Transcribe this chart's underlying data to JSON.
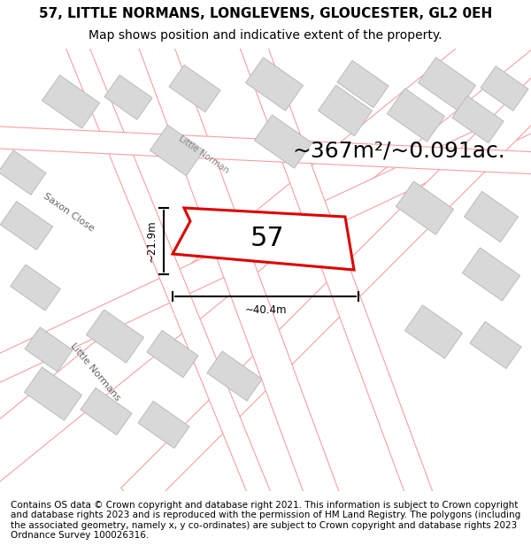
{
  "title_line1": "57, LITTLE NORMANS, LONGLEVENS, GLOUCESTER, GL2 0EH",
  "title_line2": "Map shows position and indicative extent of the property.",
  "area_text": "~367m²/~0.091ac.",
  "label_57": "57",
  "dim_width": "~40.4m",
  "dim_height": "~21.9m",
  "footer_text": "Contains OS data © Crown copyright and database right 2021. This information is subject to Crown copyright and database rights 2023 and is reproduced with the permission of HM Land Registry. The polygons (including the associated geometry, namely x, y co-ordinates) are subject to Crown copyright and database rights 2023 Ordnance Survey 100026316.",
  "bg_color": "#ffffff",
  "map_bg": "#f5f5f5",
  "road_color": "#f5a0a0",
  "road_fill": "#ffffff",
  "building_fill": "#d8d8d8",
  "building_edge": "#c0c0c0",
  "property_color": "#dd0000",
  "property_fill": "#ffffff",
  "dim_color": "#000000",
  "title_fontsize": 11,
  "subtitle_fontsize": 10,
  "area_fontsize": 18,
  "label_fontsize": 22,
  "footer_fontsize": 7.5
}
